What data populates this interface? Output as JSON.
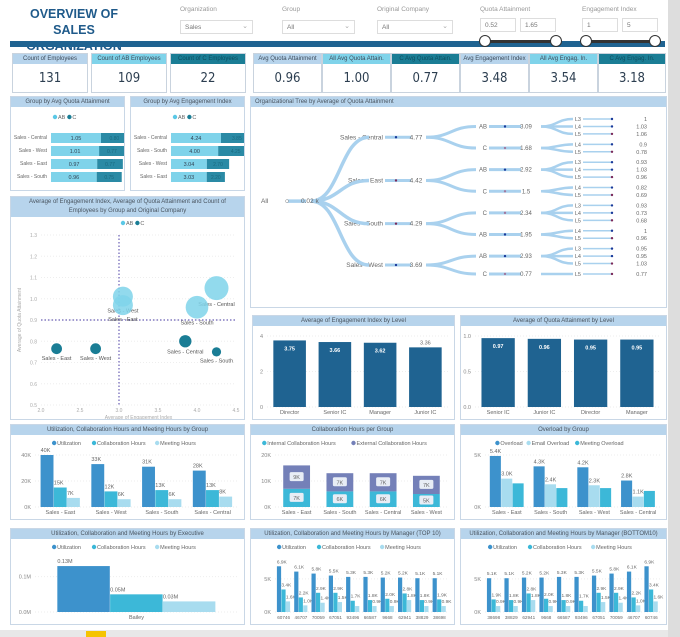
{
  "title": "OVERVIEW OF SALES ORGANIZATION",
  "colors": {
    "accent": "#1f6391",
    "ab": "#5bc8e6",
    "c": "#1a7d95",
    "util": "#3d92cc",
    "collab": "#3cb8d8",
    "meeting": "#a8dcef",
    "external": "#7480b8",
    "panel_header": "#b7d4ec"
  },
  "slicers": [
    {
      "label": "Organization",
      "value": "Sales"
    },
    {
      "label": "Group",
      "value": "All"
    },
    {
      "label": "Original Company",
      "value": "All"
    }
  ],
  "range_slicers": [
    {
      "label": "Quota Attainment",
      "min": "0.52",
      "max": "1.65"
    },
    {
      "label": "Engagement Index",
      "min": "1",
      "max": "5"
    }
  ],
  "kpis": [
    {
      "label": "Count of Employees",
      "value": "131",
      "bg": "#b7d4ec"
    },
    {
      "label": "Count of AB Employees",
      "value": "109",
      "bg": "#7fd3ea"
    },
    {
      "label": "Count of C Employees",
      "value": "22",
      "bg": "#1a7d95"
    },
    {
      "label": "Avg Quota Attainment",
      "value": "0.96",
      "bg": "#b7d4ec"
    },
    {
      "label": "All Avg Quota Attain.",
      "value": "1.00",
      "bg": "#7fd3ea"
    },
    {
      "label": "C Avg Quota Attain.",
      "value": "0.77",
      "bg": "#1a7d95"
    },
    {
      "label": "Avg Engagement Index",
      "value": "3.48",
      "bg": "#b7d4ec"
    },
    {
      "label": "All Avg Engag. In.",
      "value": "3.54",
      "bg": "#7fd3ea"
    },
    {
      "label": "C Avg Engag. In.",
      "value": "3.18",
      "bg": "#1a7d95"
    }
  ],
  "legend_abc": [
    "AB",
    "C"
  ],
  "group_quota": {
    "title": "Group by Avg Quota Attainment",
    "rows": [
      {
        "name": "Sales - Central",
        "ab": "1.05",
        "c": "0.80"
      },
      {
        "name": "Sales - West",
        "ab": "1.01",
        "c": "0.77"
      },
      {
        "name": "Sales - East",
        "ab": "0.97",
        "c": "0.77"
      },
      {
        "name": "Sales - South",
        "ab": "0.96",
        "c": "0.75"
      }
    ]
  },
  "group_engagement": {
    "title": "Group by Avg Engagement Index",
    "rows": [
      {
        "name": "Sales - Central",
        "ab": "4.24",
        "c": "3.85"
      },
      {
        "name": "Sales - South",
        "ab": "4.00",
        "c": "4.25"
      },
      {
        "name": "Sales - West",
        "ab": "3.04",
        "c": "2.70"
      },
      {
        "name": "Sales - East",
        "ab": "3.03",
        "c": "2.20"
      }
    ]
  },
  "scatter": {
    "title": "Average of Engagement Index, Average of Quota Attainment and Count of Employees by Group and Original Company",
    "xlabel": "Average of Engagement Index",
    "ylabel": "Average of Quota Attainment",
    "xlim": [
      2.0,
      4.5
    ],
    "ylim": [
      0.5,
      1.3
    ],
    "xticks": [
      "2.0",
      "2.5",
      "3.0",
      "3.5",
      "4.0",
      "4.5"
    ],
    "yticks": [
      "0.5",
      "0.6",
      "0.7",
      "0.8",
      "0.9",
      "1.0",
      "1.1",
      "1.2",
      "1.3"
    ],
    "ref_x": 3.0,
    "ref_y": 0.9,
    "points": [
      {
        "label": "Sales - Central",
        "series": "AB",
        "x": 4.25,
        "y": 1.05,
        "size": 36
      },
      {
        "label": "Sales - South",
        "series": "AB",
        "x": 4.0,
        "y": 0.96,
        "size": 34
      },
      {
        "label": "Sales - West",
        "series": "AB",
        "x": 3.05,
        "y": 1.01,
        "size": 30
      },
      {
        "label": "Sales - East",
        "series": "AB",
        "x": 3.05,
        "y": 0.97,
        "size": 30
      },
      {
        "label": "Sales - Central",
        "series": "C",
        "x": 3.85,
        "y": 0.8,
        "size": 8
      },
      {
        "label": "Sales - South",
        "series": "C",
        "x": 4.25,
        "y": 0.75,
        "size": 6
      },
      {
        "label": "Sales - West",
        "series": "C",
        "x": 2.7,
        "y": 0.765,
        "size": 7
      },
      {
        "label": "Sales - East",
        "series": "C",
        "x": 2.2,
        "y": 0.765,
        "size": 7
      }
    ]
  },
  "tree": {
    "title": "Organizational Tree by Average of Quota Attainment",
    "root": "All",
    "root_value": "0.02 k",
    "groups": [
      {
        "name": "Sales - Central",
        "value": "4.77",
        "companies": [
          {
            "name": "AB",
            "value": "3.09",
            "levels": [
              [
                "L3",
                "1"
              ],
              [
                "L4",
                "1.03"
              ],
              [
                "L5",
                "1.06"
              ]
            ]
          },
          {
            "name": "C",
            "value": "1.68",
            "levels": [
              [
                "L4",
                "0.9"
              ],
              [
                "L5",
                "0.78"
              ]
            ]
          }
        ]
      },
      {
        "name": "Sales - East",
        "value": "4.42",
        "companies": [
          {
            "name": "AB",
            "value": "2.92",
            "levels": [
              [
                "L3",
                "0.93"
              ],
              [
                "L4",
                "1.03"
              ],
              [
                "L5",
                "0.96"
              ]
            ]
          },
          {
            "name": "C",
            "value": "1.5",
            "levels": [
              [
                "L4",
                "0.82"
              ],
              [
                "L5",
                "0.69"
              ]
            ]
          }
        ]
      },
      {
        "name": "Sales - South",
        "value": "4.29",
        "companies": [
          {
            "name": "C",
            "value": "2.34",
            "levels": [
              [
                "L3",
                "0.93"
              ],
              [
                "L4",
                "0.73"
              ],
              [
                "L5",
                "0.68"
              ]
            ]
          },
          {
            "name": "AB",
            "value": "1.95",
            "levels": [
              [
                "L4",
                "1"
              ],
              [
                "L5",
                "0.96"
              ]
            ]
          }
        ]
      },
      {
        "name": "Sales - West",
        "value": "3.69",
        "companies": [
          {
            "name": "AB",
            "value": "2.93",
            "levels": [
              [
                "L3",
                "0.95"
              ],
              [
                "L4",
                "0.95"
              ],
              [
                "L5",
                "1.03"
              ]
            ]
          },
          {
            "name": "C",
            "value": "0.77",
            "levels": [
              [
                "L5",
                "0.77"
              ]
            ]
          }
        ]
      }
    ]
  },
  "chart_data": [
    {
      "id": "eng_level",
      "type": "bar",
      "title": "Average of Engagement Index by Level",
      "categories": [
        "Director",
        "Senior IC",
        "Manager",
        "Junior IC"
      ],
      "ylim": [
        0,
        4
      ],
      "yticks": [
        "0",
        "2",
        "4"
      ],
      "series": [
        {
          "values": [
            3.75,
            3.66,
            3.62,
            3.36
          ],
          "labels": [
            "3.75",
            "3.66",
            "3.62",
            "3.36"
          ]
        }
      ]
    },
    {
      "id": "quota_level",
      "type": "bar",
      "title": "Average of Quota Attainment by Level",
      "categories": [
        "Senior IC",
        "Junior IC",
        "Director",
        "Manager"
      ],
      "ylim": [
        0,
        1
      ],
      "yticks": [
        "0.0",
        "0.5",
        "1.0"
      ],
      "series": [
        {
          "values": [
            0.97,
            0.96,
            0.95,
            0.95
          ],
          "labels": [
            "0.97",
            "0.96",
            "0.95",
            "0.95"
          ]
        }
      ]
    },
    {
      "id": "hours_group",
      "type": "bar",
      "title": "Utilization, Collaboration Hours and Meeting Hours by Group",
      "categories": [
        "Sales - East",
        "Sales - West",
        "Sales - South",
        "Sales - Central"
      ],
      "ylim": [
        0,
        40000
      ],
      "yticks": [
        "0K",
        "20K",
        "40K"
      ],
      "series": [
        {
          "name": "Utilization",
          "values": [
            40000,
            33000,
            31000,
            28000
          ],
          "labels": [
            "40K",
            "33K",
            "31K",
            "28K"
          ]
        },
        {
          "name": "Collaboration Hours",
          "values": [
            15000,
            12000,
            13000,
            13000
          ],
          "labels": [
            "15K",
            "12K",
            "13K",
            "13K"
          ]
        },
        {
          "name": "Meeting Hours",
          "values": [
            7000,
            6000,
            6000,
            8000
          ],
          "labels": [
            "7K",
            "6K",
            "6K",
            "8K"
          ]
        }
      ]
    },
    {
      "id": "collab_group",
      "type": "stacked-bar",
      "title": "Collaboration Hours per Group",
      "categories": [
        "Sales - East",
        "Sales - South",
        "Sales - Central",
        "Sales - West"
      ],
      "ylim": [
        0,
        20000
      ],
      "yticks": [
        "0K",
        "10K",
        "20K"
      ],
      "series": [
        {
          "name": "Internal Collaboration Hours",
          "values": [
            7000,
            6000,
            6000,
            5000
          ],
          "labels": [
            "7K",
            "6K",
            "6K",
            "5K"
          ]
        },
        {
          "name": "External Collaboration Hours",
          "values": [
            9000,
            7000,
            7000,
            7000
          ],
          "labels": [
            "9K",
            "7K",
            "7K",
            "7K"
          ]
        }
      ]
    },
    {
      "id": "overload_group",
      "type": "bar",
      "title": "Overload by Group",
      "categories": [
        "Sales - East",
        "Sales - South",
        "Sales - West",
        "Sales - Central"
      ],
      "ylim": [
        0,
        5500
      ],
      "yticks": [
        "0K",
        "5K"
      ],
      "series": [
        {
          "name": "Overload",
          "values": [
            5400,
            4300,
            4200,
            2800
          ],
          "labels": [
            "5.4K",
            "4.3K",
            "4.2K",
            "2.8K"
          ]
        },
        {
          "name": "Email Overload",
          "values": [
            3000,
            2400,
            2300,
            1100
          ],
          "labels": [
            "3.0K",
            "2.4K",
            "2.3K",
            "1.1K"
          ]
        },
        {
          "name": "Meeting Overload",
          "values": [
            2500,
            2000,
            2000,
            1700
          ],
          "labels": [
            "",
            "",
            "",
            ""
          ]
        }
      ]
    },
    {
      "id": "hours_exec",
      "type": "bar",
      "title": "Utilization, Collaboration and Meeting Hours by Executive",
      "categories": [
        "Bailey"
      ],
      "ylim": [
        0,
        150000
      ],
      "yticks": [
        "0.0M",
        "0.1M"
      ],
      "ytickvals": [
        0,
        100000
      ],
      "series": [
        {
          "name": "Utilization",
          "values": [
            130000
          ],
          "labels": [
            "0.13M"
          ]
        },
        {
          "name": "Collaboration Hours",
          "values": [
            50000
          ],
          "labels": [
            "0.05M"
          ]
        },
        {
          "name": "Meeting Hours",
          "values": [
            30000
          ],
          "labels": [
            "0.03M"
          ]
        }
      ]
    },
    {
      "id": "hours_top10",
      "type": "bar",
      "title": "Utilization, Collaboration and Meeting Hours by Manager (TOP 10)",
      "categories": [
        "60746",
        "46707",
        "70059",
        "67051",
        "93496",
        "66587",
        "9668",
        "62941",
        "38829",
        "38698"
      ],
      "ylim": [
        0,
        8000
      ],
      "yticks": [
        "0K",
        "5K"
      ],
      "ytickvals": [
        0,
        5000
      ],
      "series": [
        {
          "name": "Utilization",
          "values": [
            6900,
            6100,
            5800,
            5500,
            5300,
            5300,
            5200,
            5200,
            5100,
            5100
          ],
          "labels": [
            "6.9K",
            "6.1K",
            "5.8K",
            "5.5K",
            "5.3K",
            "5.3K",
            "5.2K",
            "5.2K",
            "5.1K",
            "5.1K"
          ]
        },
        {
          "name": "Collaboration Hours",
          "values": [
            3400,
            2200,
            2900,
            2900,
            1700,
            1800,
            2000,
            2800,
            1800,
            1900
          ],
          "labels": [
            "3.4K",
            "2.2K",
            "2.9K",
            "2.9K",
            "1.7K",
            "1.8K",
            "2.0K",
            "2.8K",
            "1.8K",
            "1.9K"
          ]
        },
        {
          "name": "Meeting Hours",
          "values": [
            1600,
            1000,
            1400,
            1500,
            900,
            900,
            900,
            1800,
            900,
            900
          ],
          "labels": [
            "1.6K",
            "1.0K",
            "1.4K",
            "1.5K",
            "",
            "0.9K",
            "0.9K",
            "1.8K",
            "0.9K",
            "0.9K"
          ]
        }
      ]
    },
    {
      "id": "hours_bottom10",
      "type": "bar",
      "title": "Utilization, Collaboration and Meeting Hours by Manager (BOTTOM10)",
      "categories": [
        "38698",
        "38829",
        "62941",
        "9668",
        "66587",
        "93496",
        "67051",
        "70059",
        "46707",
        "60746"
      ],
      "ylim": [
        0,
        8000
      ],
      "yticks": [
        "0K",
        "5K"
      ],
      "ytickvals": [
        0,
        5000
      ],
      "series": [
        {
          "name": "Utilization",
          "values": [
            5100,
            5100,
            5200,
            5200,
            5300,
            5300,
            5500,
            5800,
            6100,
            6900
          ],
          "labels": [
            "5.1K",
            "5.1K",
            "5.2K",
            "5.2K",
            "5.3K",
            "5.3K",
            "5.5K",
            "5.8K",
            "6.1K",
            "6.9K"
          ]
        },
        {
          "name": "Collaboration Hours",
          "values": [
            1900,
            1800,
            2800,
            2000,
            1800,
            1700,
            2900,
            2900,
            2200,
            3400
          ],
          "labels": [
            "1.9K",
            "1.8K",
            "2.8K",
            "2.0K",
            "1.8K",
            "1.7K",
            "2.9K",
            "2.9K",
            "2.2K",
            "3.4K"
          ]
        },
        {
          "name": "Meeting Hours",
          "values": [
            900,
            900,
            1800,
            900,
            900,
            900,
            1500,
            1400,
            1000,
            1600
          ],
          "labels": [
            "0.9K",
            "0.9K",
            "1.8K",
            "0.9K",
            "0.9K",
            "",
            "1.5K",
            "1.4K",
            "1.0K",
            "1.6K"
          ]
        }
      ]
    }
  ]
}
